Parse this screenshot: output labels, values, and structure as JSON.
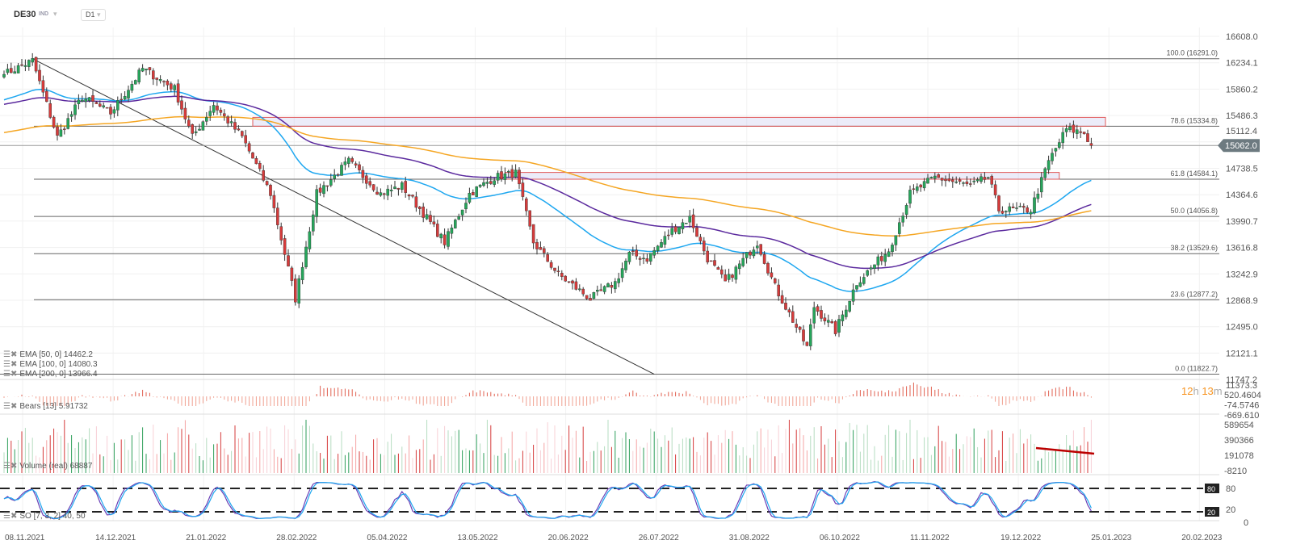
{
  "header": {
    "symbol": "DE30",
    "type": "IND",
    "timeframe": "D1"
  },
  "last_price": "15062.0",
  "timer": {
    "hours": "12",
    "h": "h",
    "minutes": "13",
    "m": "m"
  },
  "indicators": {
    "ema50": "EMA [50, 0] 14462.2",
    "ema100": "EMA [100, 0] 14080.3",
    "ema200": "EMA [200, 0] 13966.4",
    "bears": "Bears [13] 5.91732",
    "volume": "Volume (real) 68887",
    "so": "SO [7, 3, 2] 40, 50"
  },
  "chart_data": {
    "type": "candlestick",
    "title": "DE30 D1",
    "price_axis": [
      "16608.0",
      "16234.1",
      "15860.2",
      "15486.3",
      "15112.4",
      "14738.5",
      "14364.6",
      "13990.7",
      "13616.8",
      "13242.9",
      "12868.9",
      "12495.0",
      "12121.1",
      "11747.2",
      "11373.3"
    ],
    "ylim": [
      11373.3,
      16608.0
    ],
    "date_axis": [
      "08.11.2021",
      "14.12.2021",
      "21.01.2022",
      "28.02.2022",
      "05.04.2022",
      "13.05.2022",
      "20.06.2022",
      "26.07.2022",
      "31.08.2022",
      "06.10.2022",
      "11.11.2022",
      "19.12.2022",
      "25.01.2023",
      "20.02.2023"
    ],
    "close_waypoints": [
      [
        0,
        16070
      ],
      [
        8,
        16265
      ],
      [
        15,
        15180
      ],
      [
        22,
        15750
      ],
      [
        30,
        15520
      ],
      [
        39,
        16150
      ],
      [
        48,
        15865
      ],
      [
        53,
        15180
      ],
      [
        59,
        15640
      ],
      [
        67,
        15180
      ],
      [
        75,
        14380
      ],
      [
        82,
        12890
      ],
      [
        88,
        14380
      ],
      [
        97,
        14835
      ],
      [
        106,
        14380
      ],
      [
        112,
        14490
      ],
      [
        119,
        14035
      ],
      [
        124,
        13690
      ],
      [
        131,
        14380
      ],
      [
        138,
        14610
      ],
      [
        144,
        14670
      ],
      [
        149,
        13690
      ],
      [
        156,
        13235
      ],
      [
        165,
        12890
      ],
      [
        172,
        13120
      ],
      [
        176,
        13520
      ],
      [
        181,
        13460
      ],
      [
        188,
        13860
      ],
      [
        193,
        14035
      ],
      [
        198,
        13460
      ],
      [
        203,
        13120
      ],
      [
        212,
        13690
      ],
      [
        217,
        13060
      ],
      [
        226,
        12205
      ],
      [
        228,
        12780
      ],
      [
        234,
        12435
      ],
      [
        240,
        13120
      ],
      [
        249,
        13580
      ],
      [
        255,
        14380
      ],
      [
        262,
        14610
      ],
      [
        272,
        14490
      ],
      [
        277,
        14610
      ],
      [
        280,
        14150
      ],
      [
        289,
        14150
      ],
      [
        294,
        14835
      ],
      [
        299,
        15295
      ],
      [
        304,
        15240
      ],
      [
        306,
        15062
      ]
    ],
    "fibonacci": [
      {
        "label": "100.0 (16291.0)",
        "value": 16291.0
      },
      {
        "label": "78.6 (15334.8)",
        "value": 15334.8
      },
      {
        "label": "61.8 (14584.1)",
        "value": 14584.1
      },
      {
        "label": "50.0 (14056.8)",
        "value": 14056.8
      },
      {
        "label": "38.2 (13529.6)",
        "value": 13529.6
      },
      {
        "label": "23.6 (12877.2)",
        "value": 12877.2
      },
      {
        "label": "0.0 (11822.7)",
        "value": 11822.7
      }
    ],
    "zones": [
      {
        "from": 15334.8,
        "to": 15460,
        "start_index": 70,
        "end_index": 310
      },
      {
        "from": 14584.1,
        "to": 14680,
        "start_index": 141,
        "end_index": 297
      }
    ],
    "trendline": [
      [
        8,
        16291
      ],
      [
        183,
        11822.7
      ]
    ],
    "ema_series": [
      {
        "name": "EMA 50",
        "color": "#1ea7f0",
        "last": 14462.2
      },
      {
        "name": "EMA 100",
        "color": "#5b2a9e",
        "last": 14080.3
      },
      {
        "name": "EMA 200",
        "color": "#f5a623",
        "last": 13966.4
      }
    ],
    "bears_axis": [
      "520.4604",
      "-74.5746",
      "-669.610"
    ],
    "volume_axis": [
      "589654",
      "390366",
      "191078",
      "-8210"
    ],
    "stoch_axis": [
      "80",
      "20",
      "0"
    ],
    "stoch_levels": [
      80,
      20
    ],
    "colors": {
      "up": "#26a65b",
      "down": "#d63b3b",
      "fib": "#555555",
      "zone": "#e05a5a"
    }
  }
}
